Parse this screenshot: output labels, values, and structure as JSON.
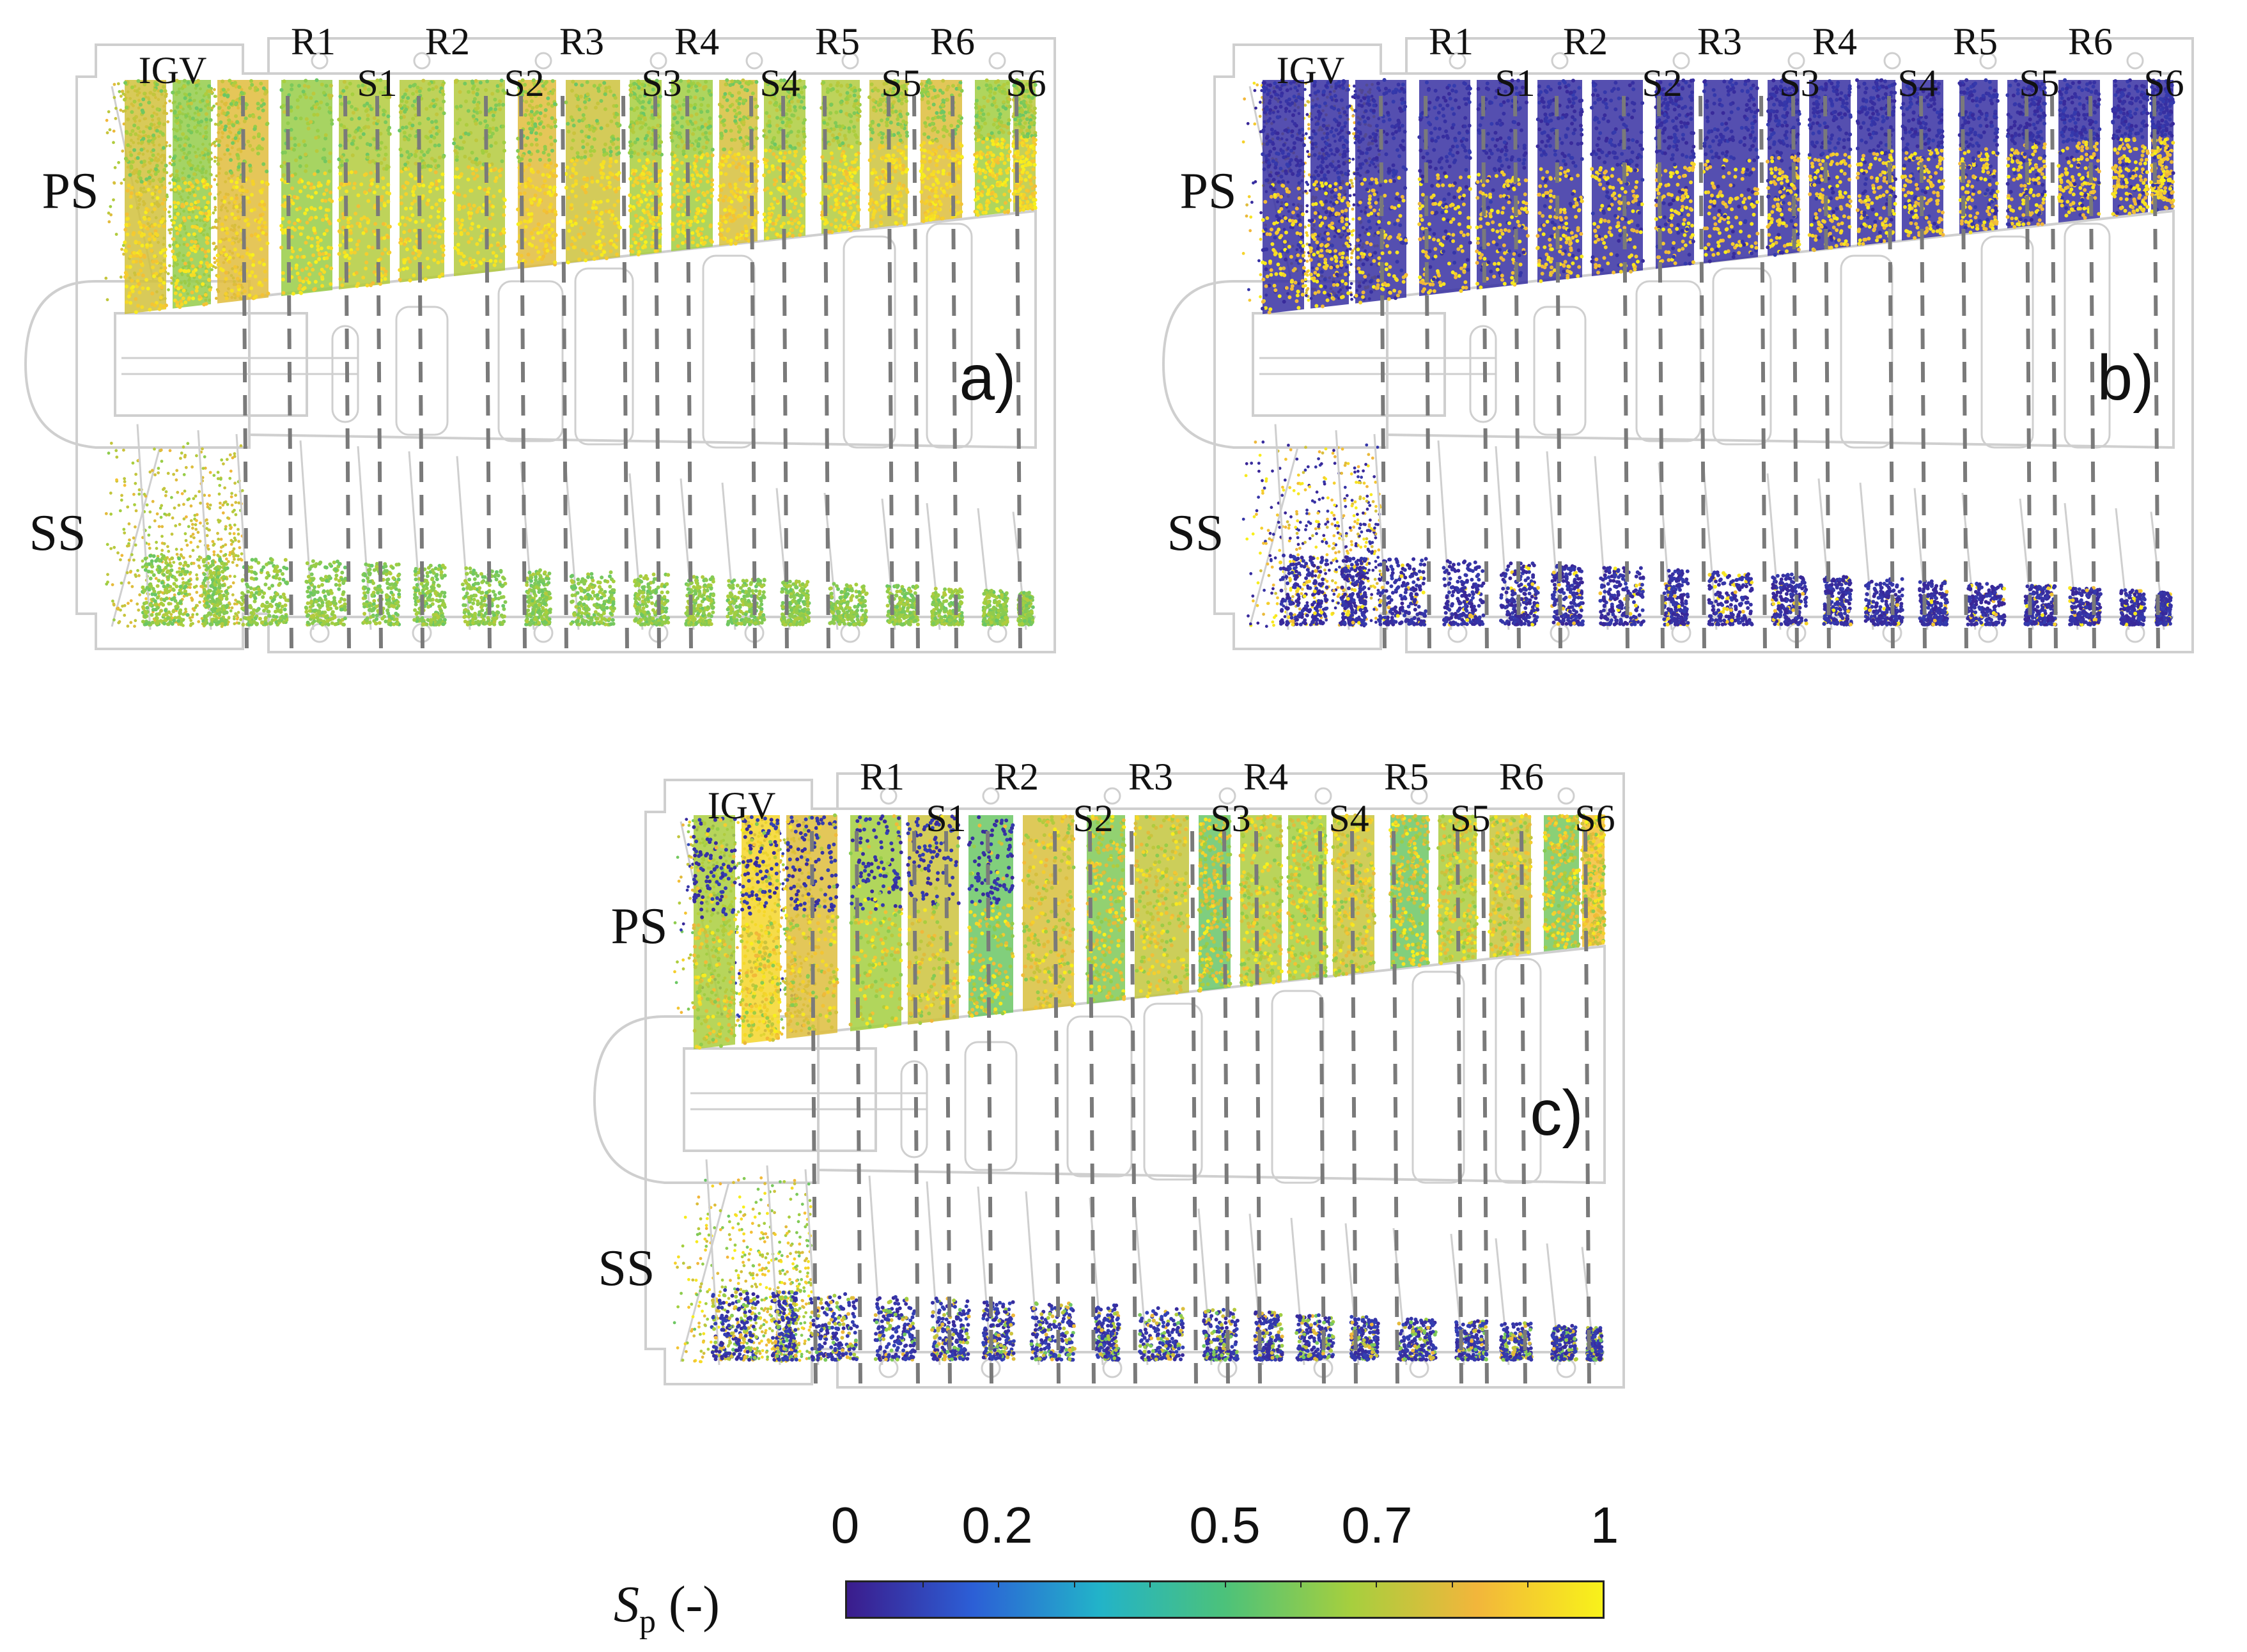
{
  "figure": {
    "panels": [
      {
        "id": "a",
        "label": "a)",
        "variant": "a"
      },
      {
        "id": "b",
        "label": "b)",
        "variant": "b"
      },
      {
        "id": "c",
        "label": "c)",
        "variant": "c"
      }
    ],
    "row_labels": {
      "pressure_side": "PS",
      "suction_side": "SS"
    },
    "stage_labels_top": [
      "R1",
      "R2",
      "R3",
      "R4",
      "R5",
      "R6"
    ],
    "stage_labels_bottom": [
      "IGV",
      "S1",
      "S2",
      "S3",
      "S4",
      "S5",
      "S6"
    ]
  },
  "colorbar": {
    "symbol": "S",
    "subscript": "p",
    "unit": "(-)",
    "tick_labels": [
      "0",
      "0.2",
      "0.5",
      "0.7",
      "1"
    ],
    "tick_values": [
      0,
      0.2,
      0.5,
      0.7,
      1
    ],
    "colors": [
      "#3b1c8c",
      "#2c5fd6",
      "#22b3c9",
      "#4cc27a",
      "#a6cf3e",
      "#f2b63b",
      "#f8f21a"
    ]
  }
}
